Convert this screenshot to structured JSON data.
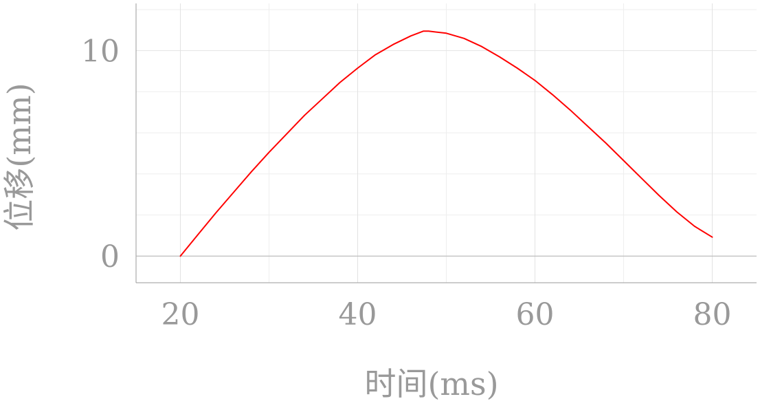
{
  "chart_data": {
    "type": "line",
    "title": "",
    "xlabel": "时间(ms)",
    "ylabel": "位移(mm)",
    "xlim": [
      15,
      85
    ],
    "ylim": [
      -1.3,
      12.3
    ],
    "x_ticks": [
      20,
      40,
      60,
      80
    ],
    "x_tick_labels": [
      "20",
      "40",
      "60",
      "80"
    ],
    "y_ticks": [
      0,
      10
    ],
    "y_tick_labels": [
      "0",
      "10"
    ],
    "x_minor_ticks": [
      30,
      50,
      70
    ],
    "y_minor_ticks": [
      2,
      4,
      6,
      8,
      12
    ],
    "grid": true,
    "series": [
      {
        "color": "#ff0000",
        "x": [
          20,
          22,
          24,
          26,
          28,
          30,
          32,
          34,
          36,
          38,
          40,
          42,
          44,
          46,
          47.4,
          48,
          50,
          52,
          54,
          56,
          58,
          60,
          62,
          64,
          66,
          68,
          70,
          72,
          74,
          76,
          78,
          80
        ],
        "y": [
          0,
          1.05,
          2.1,
          3.1,
          4.1,
          5.05,
          5.95,
          6.85,
          7.65,
          8.45,
          9.15,
          9.8,
          10.3,
          10.72,
          10.95,
          10.95,
          10.85,
          10.6,
          10.2,
          9.7,
          9.15,
          8.55,
          7.85,
          7.1,
          6.3,
          5.5,
          4.65,
          3.8,
          2.95,
          2.15,
          1.45,
          0.92
        ]
      }
    ]
  }
}
